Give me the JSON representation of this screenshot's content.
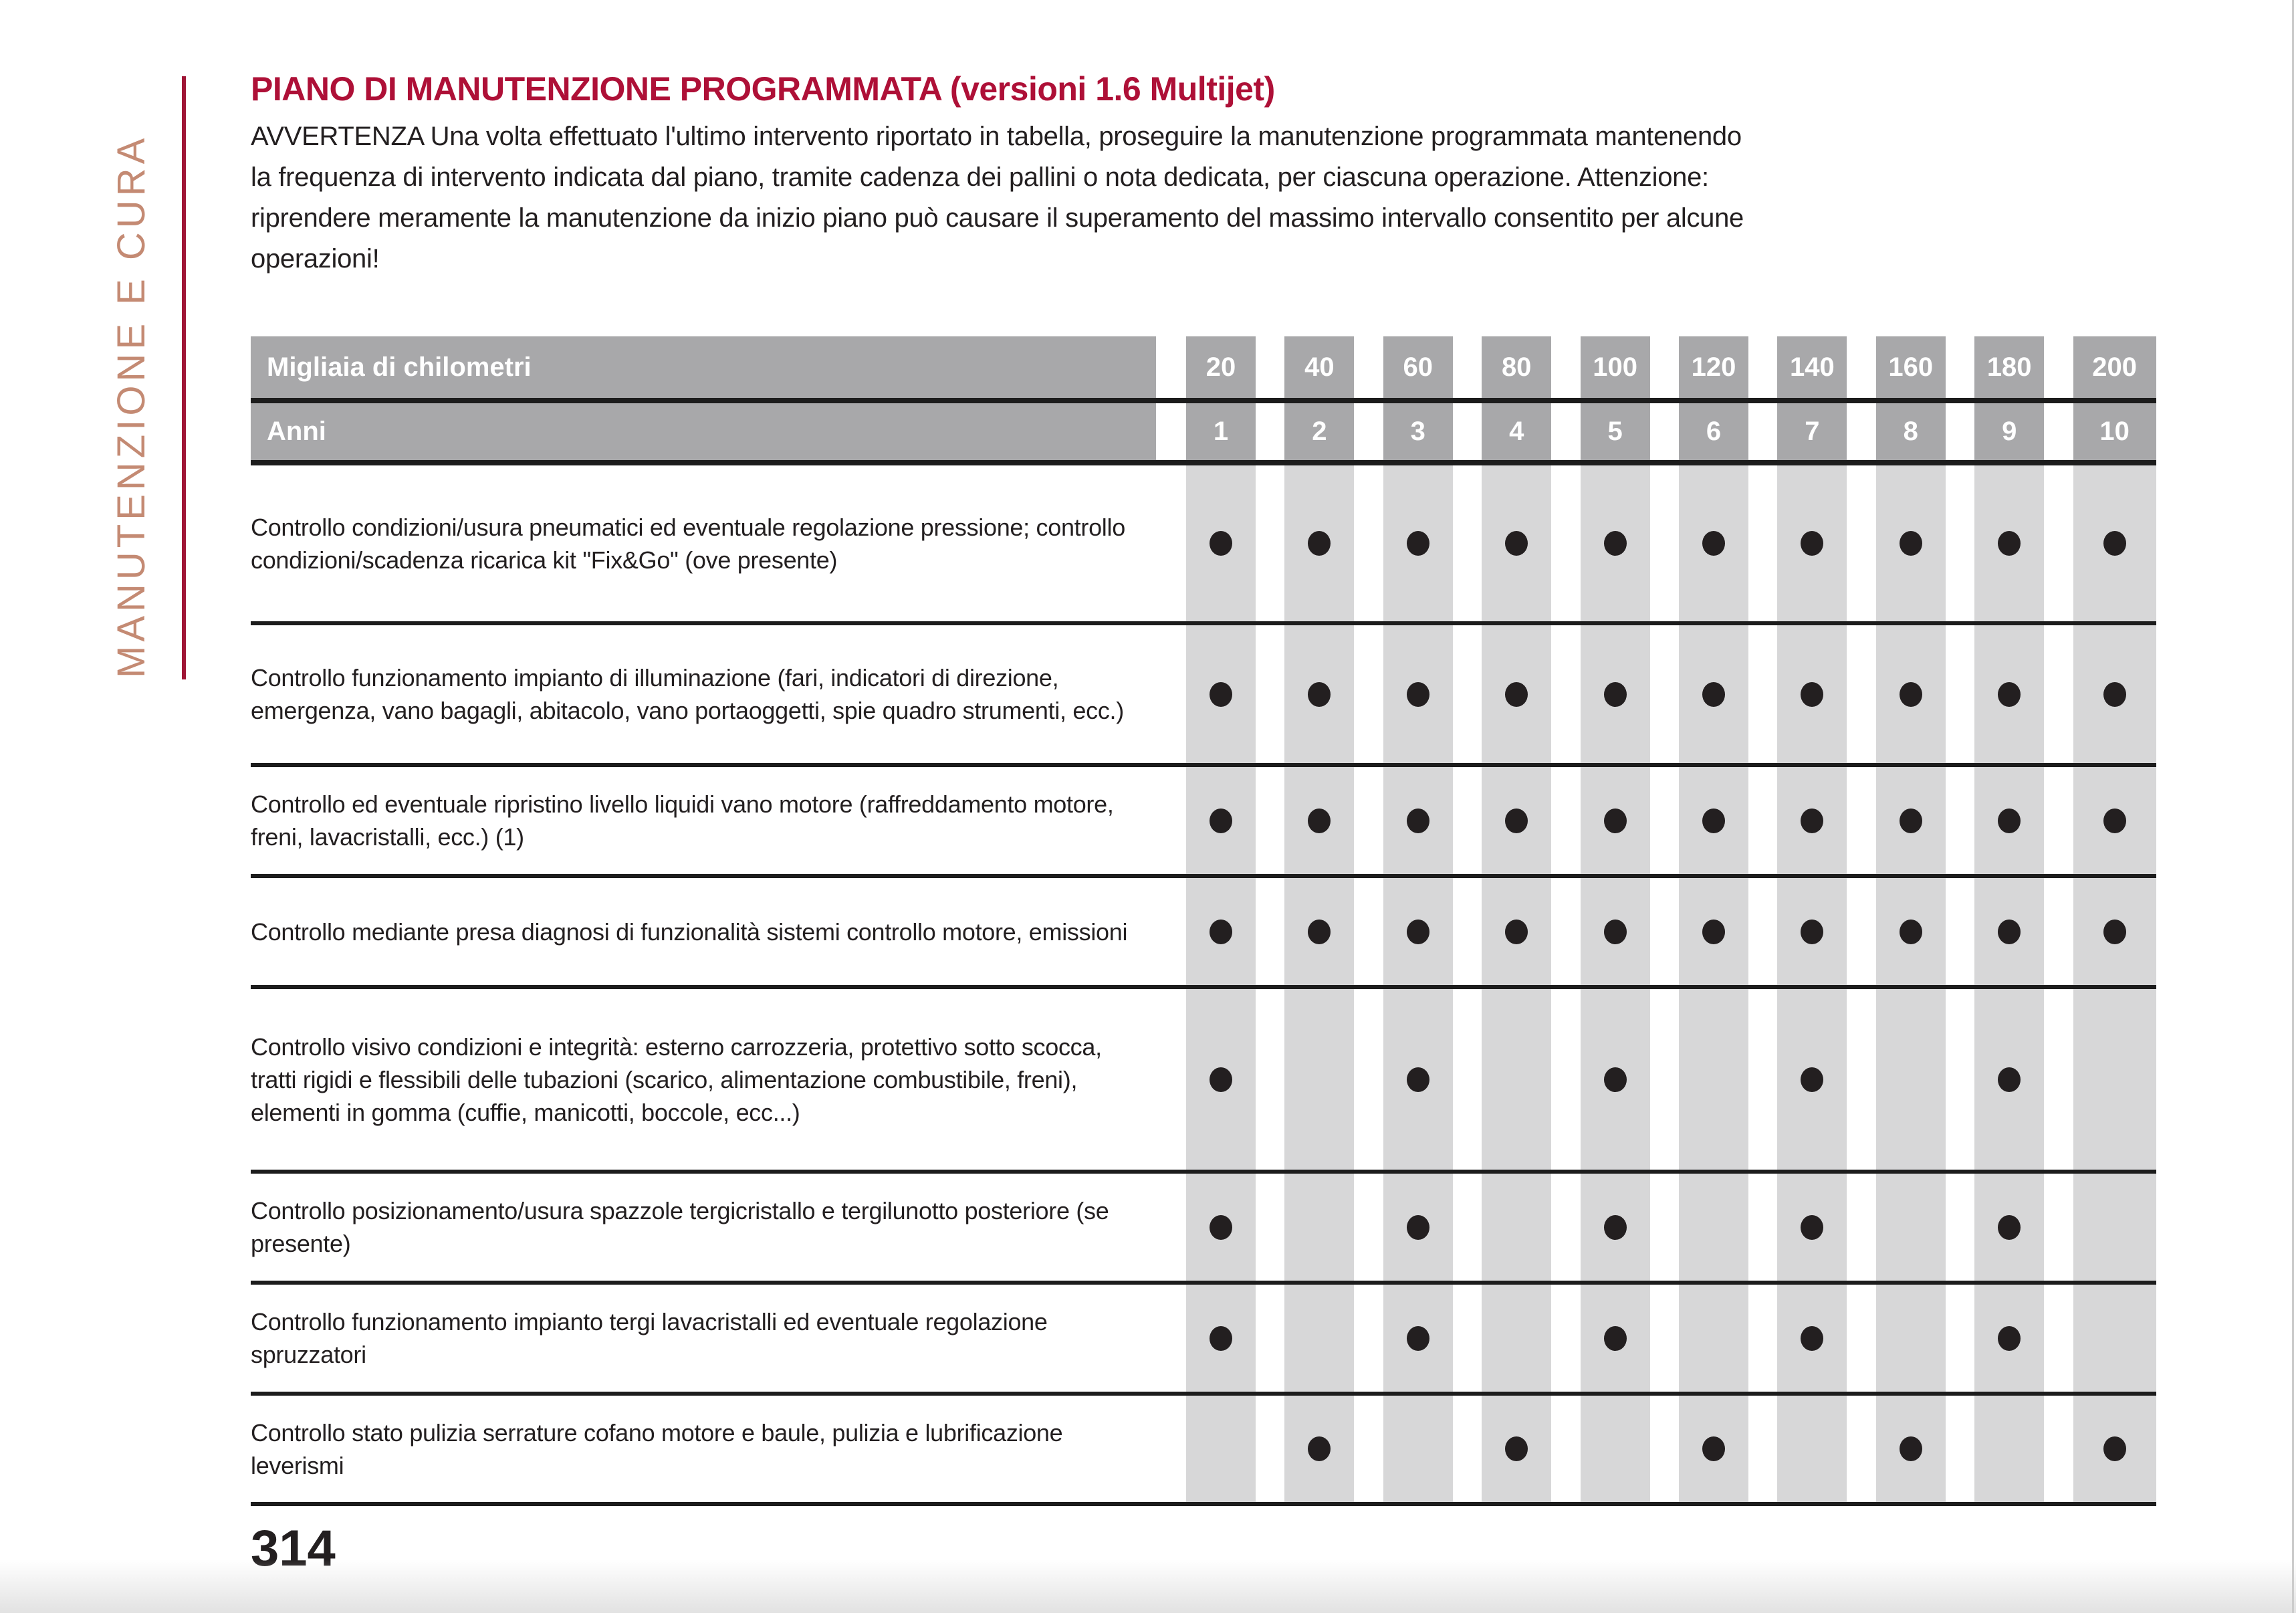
{
  "sidebar": {
    "section_label": "MANUTENZIONE E CURA"
  },
  "content": {
    "title": "PIANO DI MANUTENZIONE PROGRAMMATA (versioni 1.6 Multijet)",
    "warning_lines": [
      "AVVERTENZA Una volta effettuato l'ultimo intervento riportato in tabella, proseguire la manutenzione programmata mantenendo",
      "la frequenza di intervento indicata dal piano, tramite cadenza dei pallini o nota dedicata, per ciascuna operazione. Attenzione:",
      "riprendere meramente la manutenzione da inizio piano può causare il superamento del massimo intervallo consentito per alcune",
      "operazioni!"
    ],
    "page_number": "314"
  },
  "table": {
    "header": {
      "km_label": "Migliaia di chilometri",
      "years_label": "Anni",
      "km_values": [
        "20",
        "40",
        "60",
        "80",
        "100",
        "120",
        "140",
        "160",
        "180",
        "200"
      ],
      "year_values": [
        "1",
        "2",
        "3",
        "4",
        "5",
        "6",
        "7",
        "8",
        "9",
        "10"
      ]
    },
    "rows": [
      {
        "label": "Controllo condizioni/usura pneumatici ed eventuale regolazione pressione; controllo condizioni/scadenza ricarica kit \"Fix&Go\" (ove presente)",
        "dots": [
          1,
          1,
          1,
          1,
          1,
          1,
          1,
          1,
          1,
          1
        ]
      },
      {
        "label": "Controllo funzionamento impianto di illuminazione (fari, indicatori di direzione, emergenza, vano bagagli, abitacolo, vano portaoggetti, spie quadro strumenti, ecc.)",
        "dots": [
          1,
          1,
          1,
          1,
          1,
          1,
          1,
          1,
          1,
          1
        ]
      },
      {
        "label": "Controllo ed eventuale ripristino livello liquidi vano motore (raffreddamento motore, freni, lavacristalli, ecc.) (1)",
        "dots": [
          1,
          1,
          1,
          1,
          1,
          1,
          1,
          1,
          1,
          1
        ]
      },
      {
        "label": "Controllo mediante presa diagnosi di funzionalità sistemi controllo motore, emissioni",
        "dots": [
          1,
          1,
          1,
          1,
          1,
          1,
          1,
          1,
          1,
          1
        ]
      },
      {
        "label": "Controllo visivo condizioni e integrità: esterno carrozzeria, protettivo sotto scocca, tratti rigidi e flessibili delle tubazioni (scarico, alimentazione combustibile, freni), elementi in gomma (cuffie, manicotti, boccole, ecc...)",
        "dots": [
          1,
          0,
          1,
          0,
          1,
          0,
          1,
          0,
          1,
          0
        ]
      },
      {
        "label": "Controllo posizionamento/usura spazzole tergicristallo e tergilunotto posteriore (se presente)",
        "dots": [
          1,
          0,
          1,
          0,
          1,
          0,
          1,
          0,
          1,
          0
        ]
      },
      {
        "label": "Controllo funzionamento impianto tergi lavacristalli ed eventuale regolazione spruzzatori",
        "dots": [
          1,
          0,
          1,
          0,
          1,
          0,
          1,
          0,
          1,
          0
        ]
      },
      {
        "label": "Controllo stato pulizia serrature cofano motore e baule, pulizia e lubrificazione leverismi",
        "dots": [
          0,
          1,
          0,
          1,
          0,
          1,
          0,
          1,
          0,
          1
        ]
      }
    ]
  },
  "colors": {
    "title_red": "#ae1037",
    "sidebar_rule_red": "#9f1535",
    "sidebar_text": "#c48a73",
    "header_gray": "#a8a8aa",
    "column_stripe_gray": "#d7d7d8",
    "line_black": "#1c1c1c",
    "ink": "#231f20"
  }
}
